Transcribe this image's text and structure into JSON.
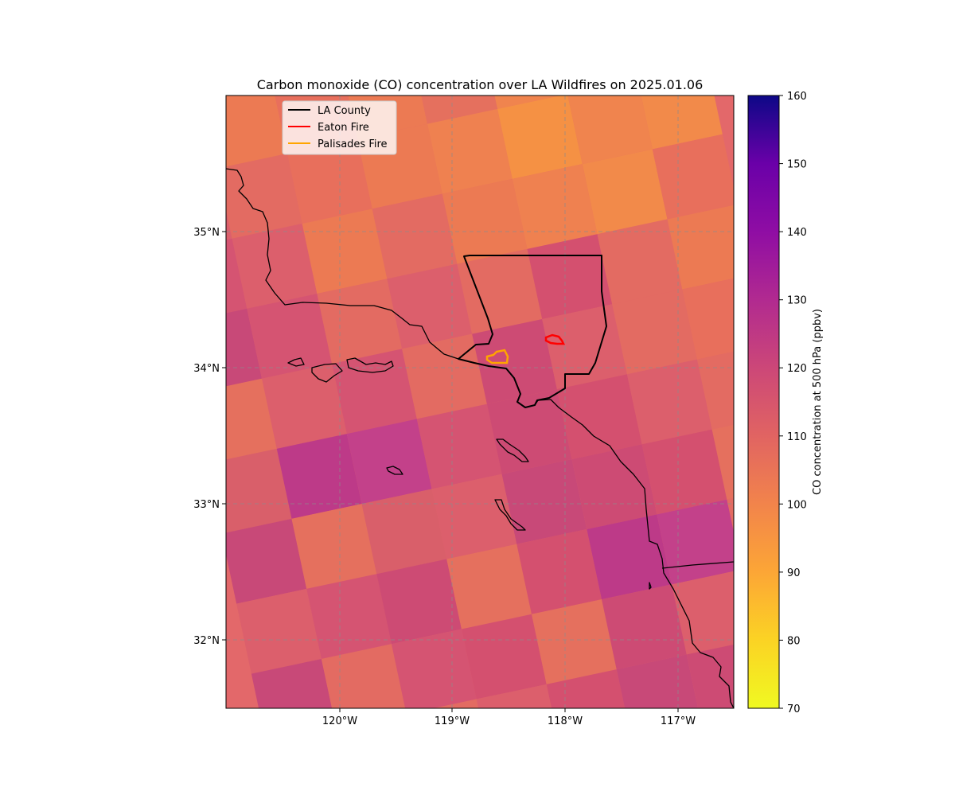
{
  "title": "Carbon monoxide (CO) concentration over LA Wildfires on 2025.01.06",
  "map": {
    "x_ticks": [
      "120°W",
      "119°W",
      "118°W",
      "117°W"
    ],
    "y_ticks": [
      "35°N",
      "34°N",
      "33°N",
      "32°N"
    ],
    "grid": true
  },
  "legend": {
    "placement": "upper-left",
    "items": [
      {
        "label": "LA County",
        "color": "#000000"
      },
      {
        "label": "Eaton Fire",
        "color": "#ff0000"
      },
      {
        "label": "Palisades Fire",
        "color": "#ffa500"
      }
    ]
  },
  "colorbar": {
    "label": "CO concentration at 500 hPa (ppbv)",
    "min": 70,
    "max": 160,
    "colormap": "plasma_r",
    "ticks": [
      "160",
      "150",
      "140",
      "130",
      "120",
      "110",
      "100",
      "90",
      "80",
      "70"
    ]
  },
  "colors": {
    "co_high": "#bd3a88",
    "co_mid": "#d95f6a",
    "co_low": "#f0844e",
    "co_lowest": "#f7a13c"
  }
}
